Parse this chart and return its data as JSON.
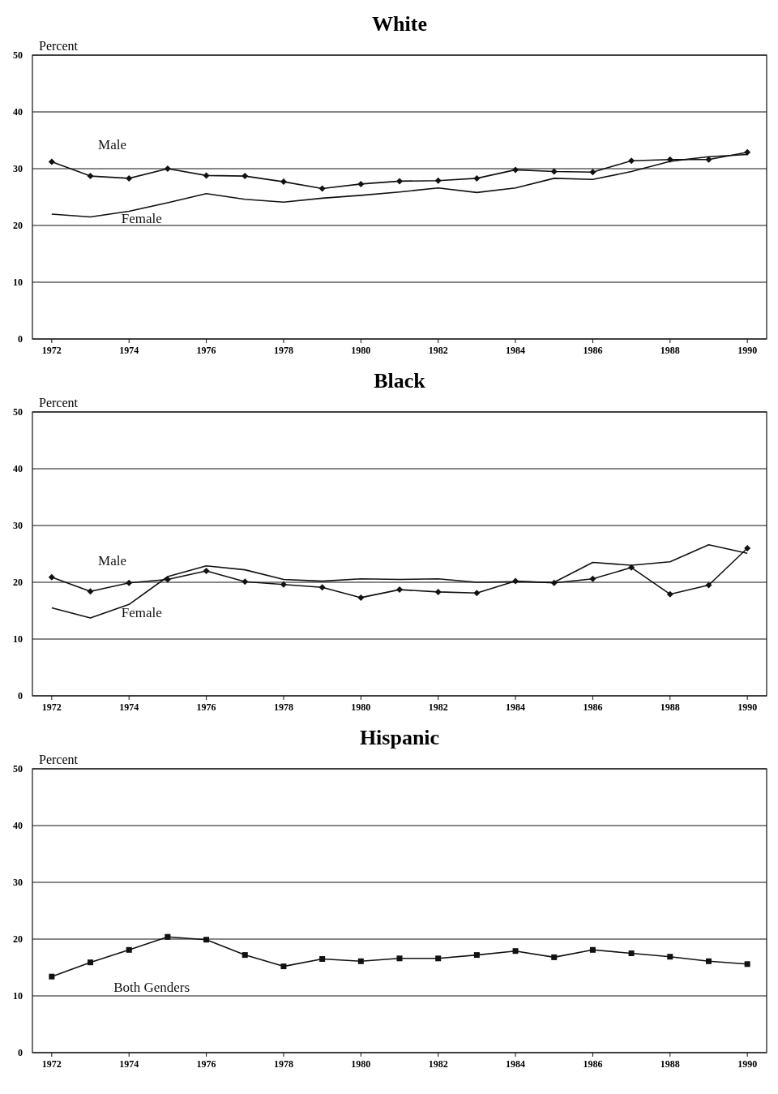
{
  "chart_data": [
    {
      "type": "line",
      "title": "White",
      "ylabel": "Percent",
      "x": [
        1972,
        1973,
        1974,
        1975,
        1976,
        1977,
        1978,
        1979,
        1980,
        1981,
        1982,
        1983,
        1984,
        1985,
        1986,
        1987,
        1988,
        1989,
        1990
      ],
      "xlim": [
        1971.5,
        1990.5
      ],
      "xticks": [
        1972,
        1974,
        1976,
        1978,
        1980,
        1982,
        1984,
        1986,
        1988,
        1990
      ],
      "ylim": [
        0,
        50
      ],
      "yticks": [
        0,
        10,
        20,
        30,
        40,
        50
      ],
      "grid": "y",
      "series": [
        {
          "name": "Male",
          "color": "#111111",
          "marker": "diamond",
          "values": [
            31.2,
            28.7,
            28.3,
            30.0,
            28.8,
            28.7,
            27.7,
            26.5,
            27.3,
            27.8,
            27.9,
            28.3,
            29.8,
            29.5,
            29.4,
            31.4,
            31.6,
            31.6,
            32.9
          ]
        },
        {
          "name": "Female",
          "color": "#111111",
          "marker": "none",
          "values": [
            22.0,
            21.5,
            22.5,
            24.0,
            25.6,
            24.6,
            24.1,
            24.8,
            25.3,
            25.9,
            26.6,
            25.8,
            26.6,
            28.3,
            28.1,
            29.5,
            31.3,
            32.1,
            32.5
          ]
        }
      ]
    },
    {
      "type": "line",
      "title": "Black",
      "ylabel": "Percent",
      "x": [
        1972,
        1973,
        1974,
        1975,
        1976,
        1977,
        1978,
        1979,
        1980,
        1981,
        1982,
        1983,
        1984,
        1985,
        1986,
        1987,
        1988,
        1989,
        1990
      ],
      "xlim": [
        1971.5,
        1990.5
      ],
      "xticks": [
        1972,
        1974,
        1976,
        1978,
        1980,
        1982,
        1984,
        1986,
        1988,
        1990
      ],
      "ylim": [
        0,
        50
      ],
      "yticks": [
        0,
        10,
        20,
        30,
        40,
        50
      ],
      "grid": "y",
      "series": [
        {
          "name": "Male",
          "color": "#111111",
          "marker": "diamond",
          "values": [
            20.9,
            18.4,
            19.9,
            20.5,
            22.0,
            20.1,
            19.6,
            19.1,
            17.3,
            18.7,
            18.3,
            18.1,
            20.2,
            19.9,
            20.6,
            22.6,
            17.9,
            19.5,
            26.0
          ]
        },
        {
          "name": "Female",
          "color": "#111111",
          "marker": "none",
          "values": [
            15.5,
            13.7,
            16.1,
            21.0,
            22.9,
            22.2,
            20.5,
            20.2,
            20.6,
            20.5,
            20.6,
            20.0,
            20.1,
            20.0,
            23.5,
            23.0,
            23.6,
            26.6,
            25.1
          ]
        }
      ]
    },
    {
      "type": "line",
      "title": "Hispanic",
      "ylabel": "Percent",
      "x": [
        1972,
        1973,
        1974,
        1975,
        1976,
        1977,
        1978,
        1979,
        1980,
        1981,
        1982,
        1983,
        1984,
        1985,
        1986,
        1987,
        1988,
        1989,
        1990
      ],
      "xlim": [
        1971.5,
        1990.5
      ],
      "xticks": [
        1972,
        1974,
        1976,
        1978,
        1980,
        1982,
        1984,
        1986,
        1988,
        1990
      ],
      "ylim": [
        0,
        50
      ],
      "yticks": [
        0,
        10,
        20,
        30,
        40,
        50
      ],
      "grid": "y",
      "series": [
        {
          "name": "Both Genders",
          "color": "#111111",
          "marker": "square",
          "values": [
            13.4,
            15.9,
            18.1,
            20.4,
            19.9,
            17.2,
            15.2,
            16.5,
            16.1,
            16.6,
            16.6,
            17.2,
            17.9,
            16.8,
            18.1,
            17.5,
            16.9,
            16.1,
            15.6
          ]
        }
      ]
    }
  ]
}
